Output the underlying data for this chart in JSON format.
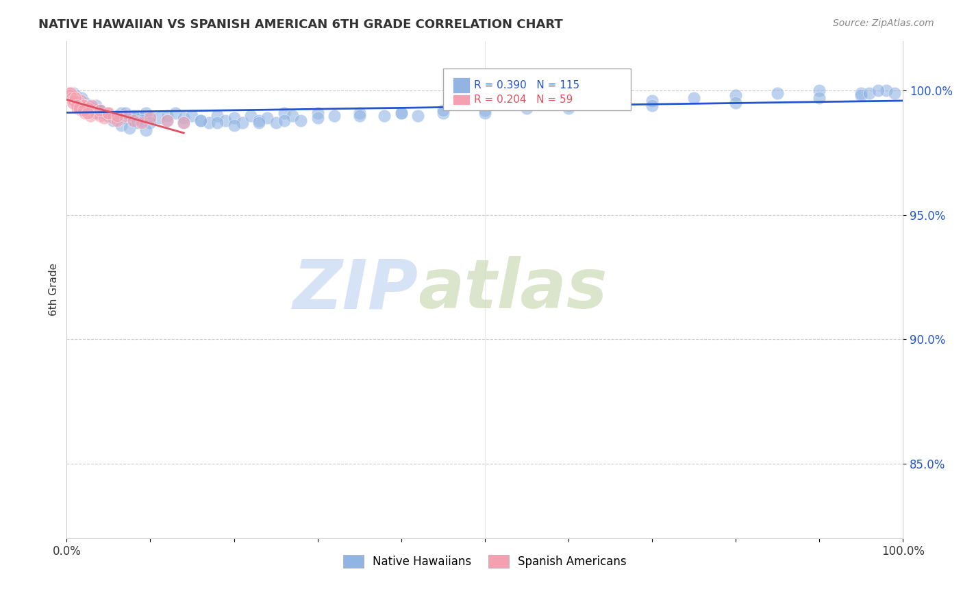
{
  "title": "NATIVE HAWAIIAN VS SPANISH AMERICAN 6TH GRADE CORRELATION CHART",
  "source": "Source: ZipAtlas.com",
  "xlabel": "",
  "ylabel": "6th Grade",
  "xlim": [
    0,
    1.0
  ],
  "ylim": [
    0.82,
    1.02
  ],
  "xticks": [
    0.0,
    0.1,
    0.2,
    0.3,
    0.4,
    0.5,
    0.6,
    0.7,
    0.8,
    0.9,
    1.0
  ],
  "xticklabels": [
    "0.0%",
    "",
    "",
    "",
    "",
    "",
    "",
    "",
    "",
    "",
    "100.0%"
  ],
  "yticks": [
    0.85,
    0.9,
    0.95,
    1.0
  ],
  "legend_entries": [
    "Native Hawaiians",
    "Spanish Americans"
  ],
  "blue_color": "#92b4e3",
  "pink_color": "#f4a0b0",
  "blue_line_color": "#2255cc",
  "pink_line_color": "#e05060",
  "R_blue": 0.39,
  "N_blue": 115,
  "R_pink": 0.204,
  "N_pink": 59,
  "blue_scatter_x": [
    0.002,
    0.003,
    0.004,
    0.005,
    0.006,
    0.007,
    0.008,
    0.009,
    0.01,
    0.011,
    0.012,
    0.013,
    0.014,
    0.015,
    0.016,
    0.017,
    0.018,
    0.02,
    0.022,
    0.025,
    0.028,
    0.03,
    0.032,
    0.035,
    0.04,
    0.045,
    0.05,
    0.055,
    0.06,
    0.065,
    0.07,
    0.075,
    0.08,
    0.085,
    0.09,
    0.095,
    0.1,
    0.11,
    0.12,
    0.13,
    0.14,
    0.15,
    0.16,
    0.17,
    0.18,
    0.19,
    0.2,
    0.21,
    0.22,
    0.23,
    0.24,
    0.25,
    0.26,
    0.27,
    0.28,
    0.3,
    0.32,
    0.35,
    0.38,
    0.4,
    0.42,
    0.45,
    0.5,
    0.55,
    0.6,
    0.65,
    0.7,
    0.75,
    0.8,
    0.85,
    0.9,
    0.95,
    0.98,
    0.99,
    0.002,
    0.003,
    0.005,
    0.007,
    0.01,
    0.015,
    0.02,
    0.025,
    0.03,
    0.035,
    0.04,
    0.05,
    0.06,
    0.07,
    0.08,
    0.09,
    0.1,
    0.12,
    0.14,
    0.16,
    0.18,
    0.2,
    0.23,
    0.26,
    0.3,
    0.35,
    0.4,
    0.45,
    0.5,
    0.6,
    0.7,
    0.8,
    0.9,
    0.95,
    0.96,
    0.97,
    0.055,
    0.065,
    0.075,
    0.085,
    0.095
  ],
  "blue_scatter_y": [
    0.998,
    0.997,
    0.999,
    0.996,
    0.998,
    0.997,
    0.999,
    0.996,
    0.998,
    0.997,
    0.995,
    0.994,
    0.996,
    0.995,
    0.994,
    0.996,
    0.997,
    0.993,
    0.995,
    0.994,
    0.992,
    0.993,
    0.991,
    0.994,
    0.992,
    0.991,
    0.99,
    0.989,
    0.99,
    0.991,
    0.989,
    0.99,
    0.988,
    0.99,
    0.989,
    0.991,
    0.99,
    0.989,
    0.99,
    0.991,
    0.989,
    0.99,
    0.988,
    0.987,
    0.99,
    0.988,
    0.989,
    0.987,
    0.99,
    0.988,
    0.989,
    0.987,
    0.991,
    0.99,
    0.988,
    0.991,
    0.99,
    0.991,
    0.99,
    0.991,
    0.99,
    0.991,
    0.992,
    0.993,
    0.994,
    0.995,
    0.996,
    0.997,
    0.998,
    0.999,
    1.0,
    0.999,
    1.0,
    0.999,
    0.999,
    0.998,
    0.997,
    0.996,
    0.997,
    0.995,
    0.994,
    0.993,
    0.992,
    0.991,
    0.992,
    0.99,
    0.989,
    0.991,
    0.99,
    0.988,
    0.987,
    0.988,
    0.987,
    0.988,
    0.987,
    0.986,
    0.987,
    0.988,
    0.989,
    0.99,
    0.991,
    0.992,
    0.991,
    0.993,
    0.994,
    0.995,
    0.997,
    0.998,
    0.999,
    1.0,
    0.988,
    0.986,
    0.985,
    0.987,
    0.984
  ],
  "pink_scatter_x": [
    0.001,
    0.002,
    0.003,
    0.004,
    0.005,
    0.006,
    0.007,
    0.008,
    0.009,
    0.01,
    0.011,
    0.012,
    0.013,
    0.014,
    0.015,
    0.016,
    0.017,
    0.018,
    0.02,
    0.022,
    0.025,
    0.028,
    0.03,
    0.035,
    0.04,
    0.045,
    0.05,
    0.055,
    0.06,
    0.07,
    0.08,
    0.09,
    0.1,
    0.12,
    0.14,
    0.003,
    0.005,
    0.007,
    0.01,
    0.015,
    0.02,
    0.025,
    0.03,
    0.04,
    0.05,
    0.06,
    0.002,
    0.003,
    0.004,
    0.005,
    0.006,
    0.007,
    0.008,
    0.009,
    0.01,
    0.012,
    0.015,
    0.02,
    0.025
  ],
  "pink_scatter_y": [
    0.999,
    0.998,
    0.997,
    0.998,
    0.999,
    0.996,
    0.997,
    0.995,
    0.996,
    0.997,
    0.994,
    0.996,
    0.993,
    0.995,
    0.994,
    0.993,
    0.996,
    0.992,
    0.994,
    0.991,
    0.993,
    0.99,
    0.992,
    0.991,
    0.99,
    0.989,
    0.991,
    0.989,
    0.988,
    0.99,
    0.988,
    0.987,
    0.989,
    0.988,
    0.987,
    0.999,
    0.997,
    0.998,
    0.996,
    0.995,
    0.994,
    0.993,
    0.994,
    0.992,
    0.991,
    0.99,
    0.998,
    0.997,
    0.998,
    0.999,
    0.997,
    0.996,
    0.995,
    0.996,
    0.997,
    0.994,
    0.993,
    0.992,
    0.991
  ]
}
